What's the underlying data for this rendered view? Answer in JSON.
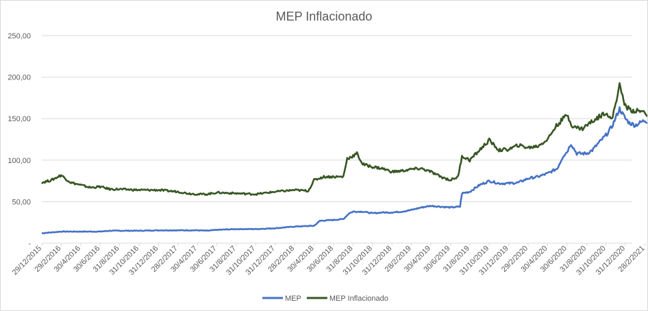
{
  "chart_data": {
    "type": "line",
    "title": "MEP Inflacionado",
    "xlabel": "",
    "ylabel": "",
    "ylim": [
      0,
      250
    ],
    "y_ticks": [
      {
        "value": 0,
        "label": "-"
      },
      {
        "value": 50,
        "label": "50,00"
      },
      {
        "value": 100,
        "label": "100,00"
      },
      {
        "value": 150,
        "label": "150,00"
      },
      {
        "value": 200,
        "label": "200,00"
      },
      {
        "value": 250,
        "label": "250,00"
      }
    ],
    "x_ticks": [
      "29/12/2015",
      "29/2/2016",
      "30/4/2016",
      "30/6/2016",
      "31/8/2016",
      "31/10/2016",
      "31/12/2016",
      "28/2/2017",
      "30/4/2017",
      "30/6/2017",
      "31/8/2017",
      "31/10/2017",
      "31/12/2017",
      "28/2/2018",
      "30/4/2018",
      "30/6/2018",
      "31/8/2018",
      "31/10/2018",
      "31/12/2018",
      "28/2/2019",
      "30/4/2019",
      "30/6/2019",
      "31/8/2019",
      "31/10/2019",
      "31/12/2019",
      "29/2/2020",
      "30/4/2020",
      "30/6/2020",
      "31/8/2020",
      "31/10/2020",
      "31/12/2020",
      "28/2/2021"
    ],
    "grid": true,
    "legend_position": "bottom",
    "x_end_index": 31.5,
    "series": [
      {
        "name": "MEP",
        "color": "#4472c4",
        "points": [
          [
            0,
            12
          ],
          [
            0.5,
            13
          ],
          [
            1,
            14
          ],
          [
            1.5,
            14
          ],
          [
            2,
            14
          ],
          [
            2.5,
            14
          ],
          [
            3,
            14
          ],
          [
            3.5,
            15
          ],
          [
            4,
            15
          ],
          [
            5,
            15
          ],
          [
            6,
            15.5
          ],
          [
            7,
            15.5
          ],
          [
            8,
            15.5
          ],
          [
            8.5,
            15
          ],
          [
            9,
            16
          ],
          [
            10,
            17
          ],
          [
            11,
            17
          ],
          [
            12,
            18
          ],
          [
            12.5,
            19
          ],
          [
            13,
            20
          ],
          [
            14,
            21
          ],
          [
            14.3,
            27
          ],
          [
            15,
            28
          ],
          [
            15.5,
            29
          ],
          [
            15.8,
            36
          ],
          [
            16,
            38
          ],
          [
            16.5,
            38
          ],
          [
            17,
            36
          ],
          [
            17.5,
            37
          ],
          [
            18,
            37
          ],
          [
            18.5,
            38
          ],
          [
            19,
            40
          ],
          [
            19.5,
            43
          ],
          [
            20,
            45
          ],
          [
            20.5,
            44
          ],
          [
            21,
            43
          ],
          [
            21.5,
            44
          ],
          [
            21.6,
            60
          ],
          [
            22,
            62
          ],
          [
            22.5,
            70
          ],
          [
            23,
            75
          ],
          [
            23.5,
            72
          ],
          [
            24,
            72
          ],
          [
            24.5,
            73
          ],
          [
            25,
            78
          ],
          [
            25.5,
            80
          ],
          [
            26,
            84
          ],
          [
            26.5,
            90
          ],
          [
            26.8,
            105
          ],
          [
            27,
            110
          ],
          [
            27.2,
            120
          ],
          [
            27.5,
            108
          ],
          [
            28,
            108
          ],
          [
            28.3,
            112
          ],
          [
            28.6,
            120
          ],
          [
            29,
            130
          ],
          [
            29.3,
            140
          ],
          [
            29.7,
            162
          ],
          [
            30,
            150
          ],
          [
            30.2,
            145
          ],
          [
            30.5,
            142
          ],
          [
            31,
            148
          ],
          [
            31.3,
            145
          ],
          [
            31.5,
            142
          ]
        ]
      },
      {
        "name": "MEP Inflacionado",
        "color": "#375623",
        "points": [
          [
            0,
            73
          ],
          [
            0.5,
            76
          ],
          [
            1,
            82
          ],
          [
            1.2,
            78
          ],
          [
            1.5,
            73
          ],
          [
            2,
            70
          ],
          [
            2.5,
            67
          ],
          [
            3,
            68
          ],
          [
            3.5,
            65
          ],
          [
            4,
            65
          ],
          [
            5,
            64
          ],
          [
            6,
            64
          ],
          [
            7,
            62
          ],
          [
            7.5,
            60
          ],
          [
            8,
            59
          ],
          [
            8.5,
            59
          ],
          [
            9,
            61
          ],
          [
            10,
            60
          ],
          [
            11,
            59
          ],
          [
            12,
            62
          ],
          [
            13,
            64
          ],
          [
            13.7,
            63
          ],
          [
            14,
            76
          ],
          [
            14.5,
            80
          ],
          [
            15,
            80
          ],
          [
            15.5,
            80
          ],
          [
            15.7,
            102
          ],
          [
            16,
            105
          ],
          [
            16.2,
            108
          ],
          [
            16.5,
            95
          ],
          [
            17,
            92
          ],
          [
            17.5,
            90
          ],
          [
            18,
            86
          ],
          [
            18.5,
            87
          ],
          [
            19,
            89
          ],
          [
            19.5,
            90
          ],
          [
            20,
            86
          ],
          [
            20.5,
            80
          ],
          [
            21,
            76
          ],
          [
            21.4,
            80
          ],
          [
            21.6,
            105
          ],
          [
            22,
            100
          ],
          [
            22.5,
            112
          ],
          [
            23,
            124
          ],
          [
            23.5,
            112
          ],
          [
            24,
            113
          ],
          [
            24.5,
            118
          ],
          [
            25,
            115
          ],
          [
            25.5,
            117
          ],
          [
            26,
            125
          ],
          [
            26.4,
            140
          ],
          [
            27,
            155
          ],
          [
            27.3,
            140
          ],
          [
            27.8,
            138
          ],
          [
            28,
            142
          ],
          [
            28.5,
            150
          ],
          [
            29,
            158
          ],
          [
            29.3,
            148
          ],
          [
            29.7,
            190
          ],
          [
            30,
            165
          ],
          [
            30.3,
            160
          ],
          [
            31,
            158
          ],
          [
            31.3,
            150
          ],
          [
            31.5,
            142
          ]
        ]
      }
    ]
  }
}
